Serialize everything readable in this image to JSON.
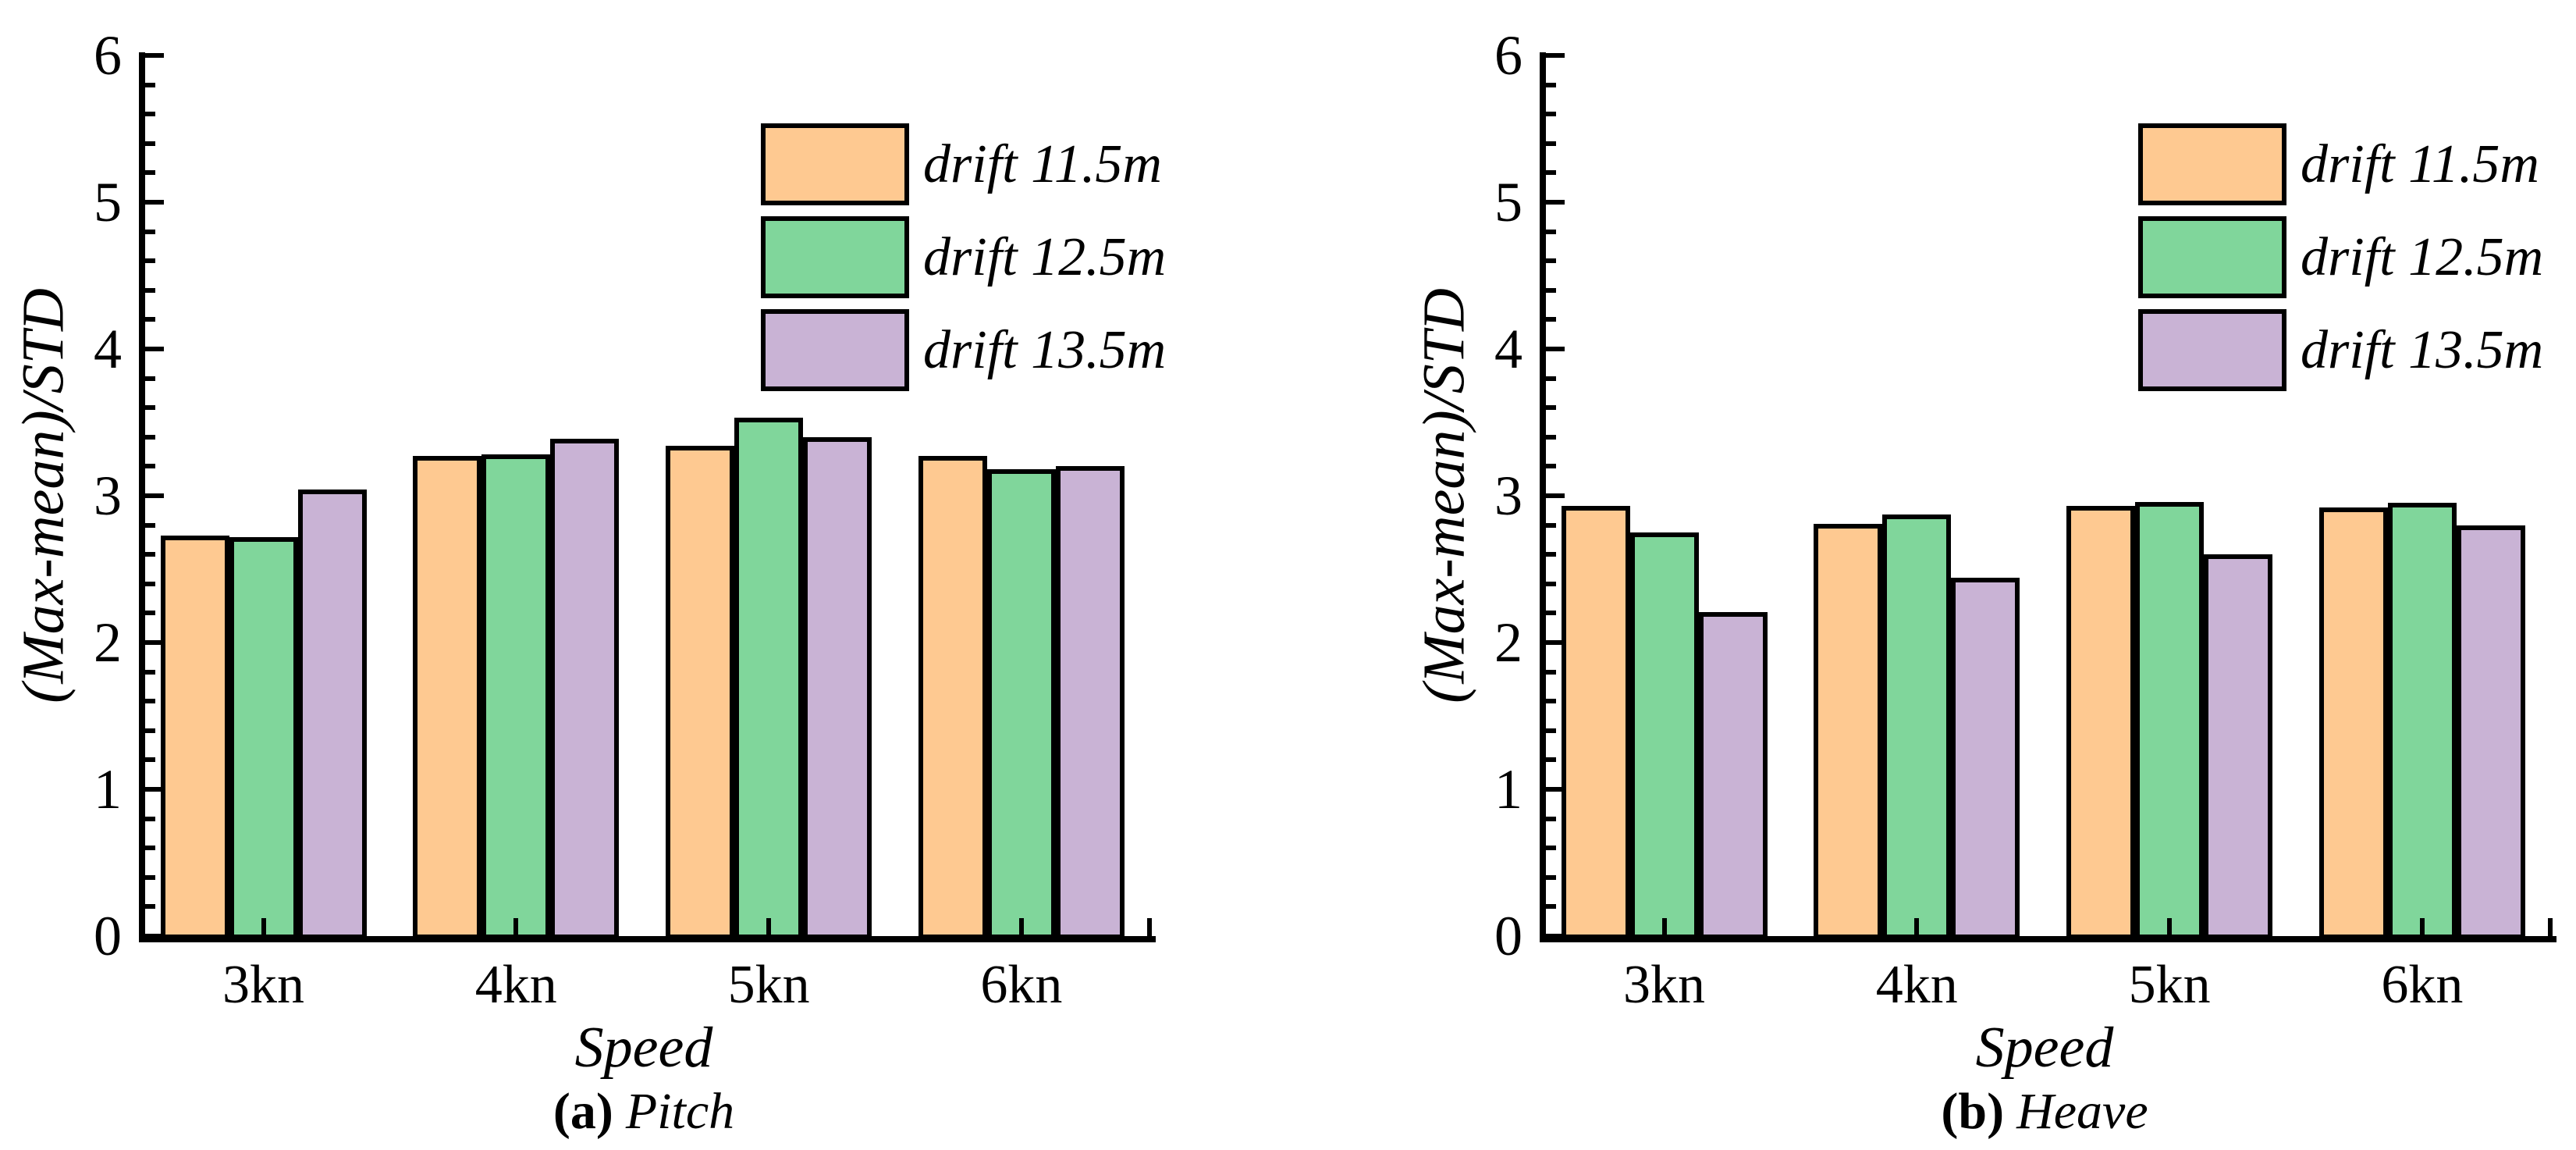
{
  "figure": {
    "background": "#FFFFFF",
    "axis_color": "#000000"
  },
  "chart_data": [
    {
      "type": "bar",
      "panel": "a",
      "caption_label": "(a)",
      "caption_title": "Pitch",
      "xlabel": "Speed",
      "ylabel": "(Max-mean)/STD",
      "categories": [
        "3kn",
        "4kn",
        "5kn",
        "6kn"
      ],
      "series": [
        {
          "name": "drift 11.5m",
          "color": "#FEC991",
          "values": [
            2.73,
            3.27,
            3.34,
            3.27
          ]
        },
        {
          "name": "drift 12.5m",
          "color": "#80D69B",
          "values": [
            2.72,
            3.28,
            3.53,
            3.18
          ]
        },
        {
          "name": "drift 13.5m",
          "color": "#C9B3D5",
          "values": [
            3.04,
            3.39,
            3.4,
            3.2
          ]
        }
      ],
      "ylim": [
        0,
        6
      ],
      "yticks": [
        0,
        1,
        2,
        3,
        4,
        5,
        6
      ],
      "ytick_minor_step": 0.2,
      "bar_edge_color": "#000000",
      "grid": false,
      "legend_position": "top-right"
    },
    {
      "type": "bar",
      "panel": "b",
      "caption_label": "(b)",
      "caption_title": "Heave",
      "xlabel": "Speed",
      "ylabel": "(Max-mean)/STD",
      "categories": [
        "3kn",
        "4kn",
        "5kn",
        "6kn"
      ],
      "series": [
        {
          "name": "drift 11.5m",
          "color": "#FEC991",
          "values": [
            2.93,
            2.81,
            2.93,
            2.92
          ]
        },
        {
          "name": "drift 12.5m",
          "color": "#80D69B",
          "values": [
            2.75,
            2.87,
            2.96,
            2.95
          ]
        },
        {
          "name": "drift 13.5m",
          "color": "#C9B3D5",
          "values": [
            2.21,
            2.44,
            2.6,
            2.8
          ]
        }
      ],
      "ylim": [
        0,
        6
      ],
      "yticks": [
        0,
        1,
        2,
        3,
        4,
        5,
        6
      ],
      "ytick_minor_step": 0.2,
      "bar_edge_color": "#000000",
      "grid": false,
      "legend_position": "top-right"
    }
  ]
}
